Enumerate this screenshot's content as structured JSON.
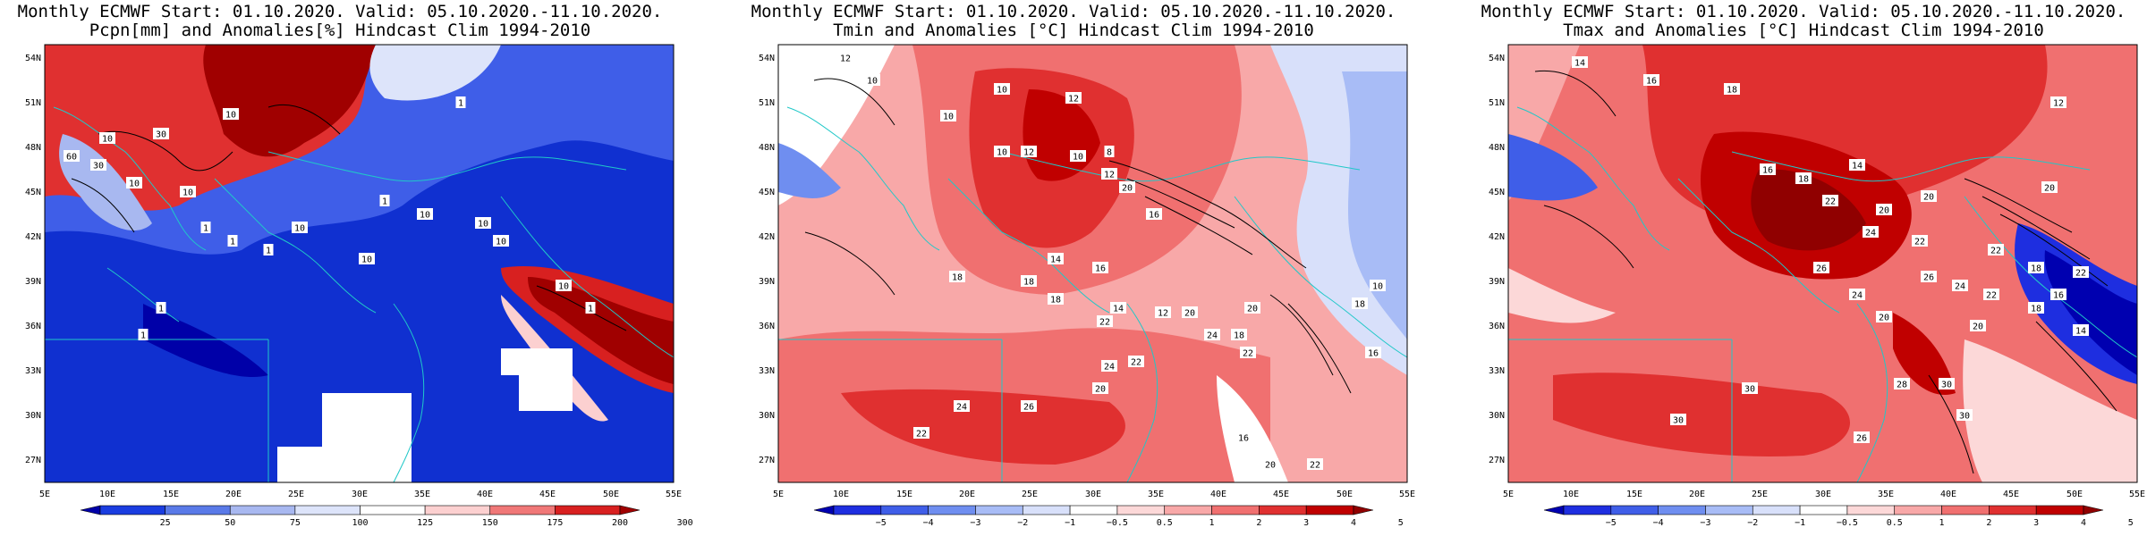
{
  "panels": [
    {
      "title_line1": "Monthly ECMWF Start: 01.10.2020. Valid: 05.10.2020.-11.10.2020.",
      "title_line2": "Pcpn[mm] and Anomalies[%] Hindcast Clim 1994-2010",
      "colorbar_ticks": [
        "25",
        "50",
        "75",
        "100",
        "125",
        "150",
        "175",
        "200",
        "300"
      ],
      "colorbar_colors": [
        "#0000a8",
        "#1a3de0",
        "#5a7ae8",
        "#a8b8f0",
        "#dde4fa",
        "#ffffff",
        "#fcd0d0",
        "#f07878",
        "#d82020",
        "#a00000"
      ],
      "contour_labels": [
        "1",
        "10",
        "30",
        "10",
        "60",
        "30",
        "10",
        "10",
        "1",
        "1",
        "10",
        "1",
        "1",
        "10",
        "10",
        "10",
        "10",
        "1",
        "1",
        "1",
        "10"
      ]
    },
    {
      "title_line1": "Monthly ECMWF Start: 01.10.2020. Valid: 05.10.2020.-11.10.2020.",
      "title_line2": "Tmin and Anomalies [°C] Hindcast Clim 1994-2010",
      "colorbar_ticks": [
        "−5",
        "−4",
        "−3",
        "−2",
        "−1",
        "−0.5",
        "0.5",
        "1",
        "2",
        "3",
        "4",
        "5"
      ],
      "colorbar_colors": [
        "#0000b0",
        "#1e2ee0",
        "#3f5ee8",
        "#6f8ef0",
        "#a8bcf6",
        "#d8e0fa",
        "#ffffff",
        "#fcd8d8",
        "#f8a8a8",
        "#f07070",
        "#e03030",
        "#c00000",
        "#900000"
      ],
      "contour_labels": [
        "12",
        "10",
        "10",
        "10",
        "12",
        "8",
        "10",
        "12",
        "10",
        "12",
        "20",
        "16",
        "14",
        "18",
        "18",
        "16",
        "14",
        "20",
        "18",
        "22",
        "12",
        "20",
        "18",
        "22",
        "24",
        "22",
        "24",
        "20",
        "26",
        "22",
        "24",
        "16",
        "20",
        "22",
        "18",
        "16",
        "10"
      ]
    },
    {
      "title_line1": "Monthly ECMWF Start: 01.10.2020. Valid: 05.10.2020.-11.10.2020.",
      "title_line2": "Tmax and Anomalies [°C] Hindcast Clim 1994-2010",
      "colorbar_ticks": [
        "−5",
        "−4",
        "−3",
        "−2",
        "−1",
        "−0.5",
        "0.5",
        "1",
        "2",
        "3",
        "4",
        "5"
      ],
      "colorbar_colors": [
        "#0000b0",
        "#1e2ee0",
        "#3f5ee8",
        "#6f8ef0",
        "#a8bcf6",
        "#d8e0fa",
        "#ffffff",
        "#fcd8d8",
        "#f8a8a8",
        "#f07070",
        "#e03030",
        "#c00000",
        "#900000"
      ],
      "contour_labels": [
        "14",
        "16",
        "18",
        "12",
        "16",
        "18",
        "14",
        "22",
        "20",
        "20",
        "24",
        "22",
        "26",
        "24",
        "20",
        "26",
        "24",
        "22",
        "30",
        "28",
        "30",
        "20",
        "18",
        "30",
        "30",
        "26",
        "22",
        "18",
        "16",
        "14",
        "20",
        "22"
      ]
    }
  ],
  "lat_labels": [
    "54N",
    "51N",
    "48N",
    "45N",
    "42N",
    "39N",
    "36N",
    "33N",
    "30N",
    "27N"
  ],
  "lon_labels": [
    "5E",
    "10E",
    "15E",
    "20E",
    "25E",
    "30E",
    "35E",
    "40E",
    "45E",
    "50E",
    "55E"
  ]
}
